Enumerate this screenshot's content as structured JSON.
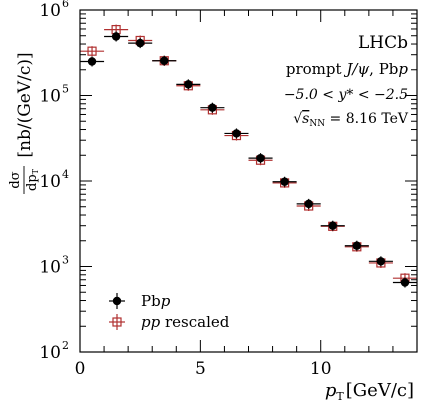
{
  "chart_data": {
    "type": "scatter",
    "xlabel_main": "p",
    "xlabel_sub": "T",
    "xlabel_unit": "[GeV/c]",
    "ylabel_num": "dσ",
    "ylabel_den_main": "dp",
    "ylabel_den_sub": "T",
    "ylabel_unit": "[nb/(GeV/c)]",
    "xlim": [
      0,
      14
    ],
    "ylim_log10": [
      2,
      6
    ],
    "log_y": true,
    "x_ticks": [
      0,
      5,
      10
    ],
    "x_tick_labels": [
      "0",
      "5",
      "10"
    ],
    "y_ticks": [
      2,
      3,
      4,
      5,
      6
    ],
    "y_tick_labels": [
      "10",
      "10",
      "10",
      "10",
      "10"
    ],
    "y_tick_exps": [
      "2",
      "3",
      "4",
      "5",
      "6"
    ],
    "annotations": {
      "experiment": "LHCb",
      "process_pre": "prompt ",
      "process_particle": "J/ψ",
      "process_post": ",  Pb",
      "process_p": "p",
      "rapidity": "−5.0 < y* < −2.5",
      "energy_sqrt": "√",
      "energy_s": "s",
      "energy_sub": "NN",
      "energy_val": " = 8.16 TeV"
    },
    "legend": {
      "placement": "bottom-left",
      "pbp_main": "Pb",
      "pbp_ital": "p",
      "pp_ital": "pp",
      "pp_main": " rescaled"
    },
    "series": [
      {
        "color": "#000000",
        "marker": "filled-circle",
        "x": [
          0.5,
          1.5,
          2.5,
          3.5,
          4.5,
          5.5,
          6.5,
          7.5,
          8.5,
          9.5,
          10.5,
          11.5,
          12.5,
          13.5
        ],
        "xerr": [
          0.5,
          0.5,
          0.5,
          0.5,
          0.5,
          0.5,
          0.5,
          0.5,
          0.5,
          0.5,
          0.5,
          0.5,
          0.5,
          0.5
        ],
        "y": [
          250000,
          490000,
          410000,
          255000,
          135000,
          72000,
          36000,
          18500,
          9800,
          5400,
          3000,
          1750,
          1150,
          650
        ]
      },
      {
        "color": "#b03030",
        "marker": "open-square",
        "x": [
          0.5,
          1.5,
          2.5,
          3.5,
          4.5,
          5.5,
          6.5,
          7.5,
          8.5,
          9.5,
          10.5,
          11.5,
          12.5,
          13.5
        ],
        "xerr": [
          0.5,
          0.5,
          0.5,
          0.5,
          0.5,
          0.5,
          0.5,
          0.5,
          0.5,
          0.5,
          0.5,
          0.5,
          0.5,
          0.5
        ],
        "y": [
          330000,
          590000,
          440000,
          255000,
          130000,
          68000,
          34000,
          17500,
          9500,
          5100,
          2950,
          1700,
          1100,
          730
        ]
      }
    ]
  }
}
